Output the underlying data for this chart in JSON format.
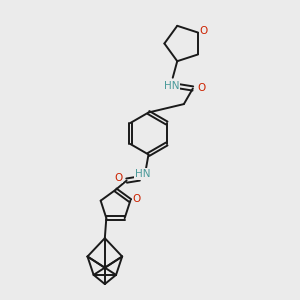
{
  "background_color": "#ebebeb",
  "line_color": "#1a1a1a",
  "N_color": "#4a9a9a",
  "O_color": "#cc2200",
  "figure_size": [
    3.0,
    3.0
  ],
  "dpi": 100,
  "xlim": [
    0,
    10
  ],
  "ylim": [
    0,
    10
  ]
}
